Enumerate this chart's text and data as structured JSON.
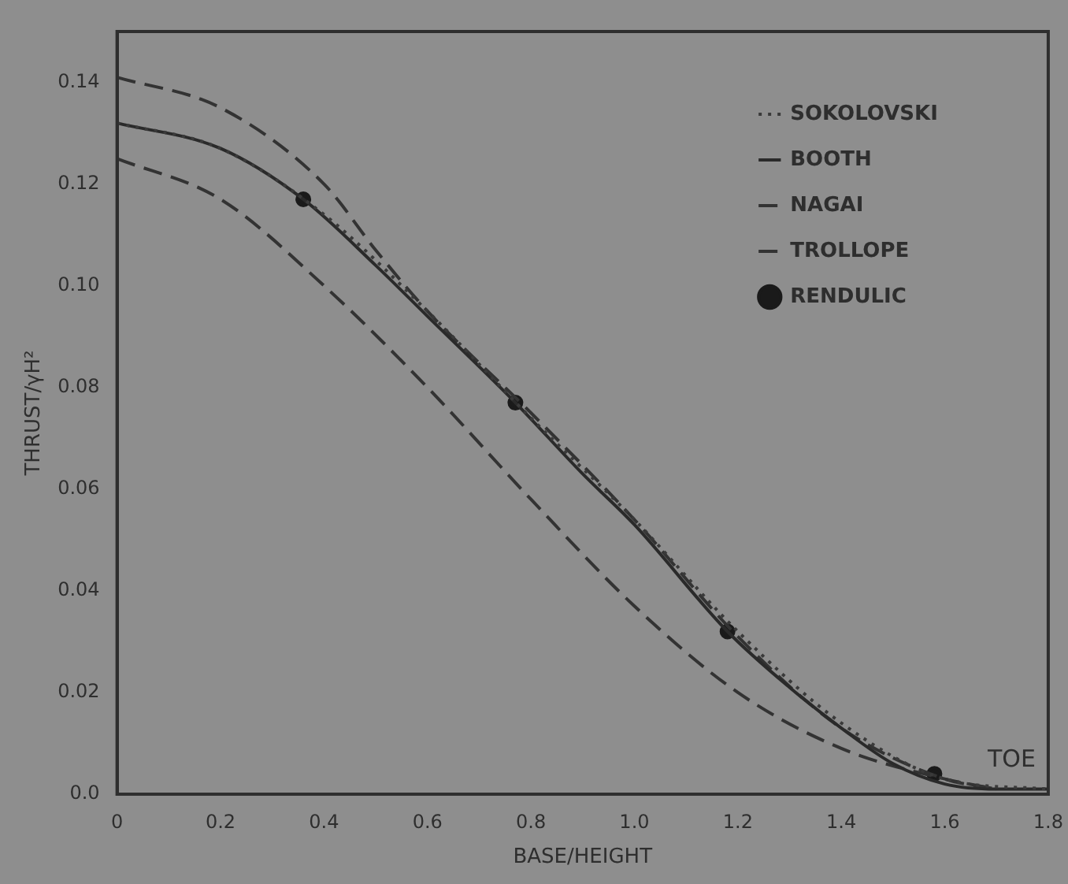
{
  "chart_data": {
    "type": "line",
    "xlabel": "BASE/HEIGHT",
    "ylabel": "THRUST/γH²",
    "xlim": [
      0,
      1.8
    ],
    "xticks": [
      0,
      0.2,
      0.4,
      0.6,
      0.8,
      {
        "value": 1,
        "label": "1.0"
      },
      1.2,
      1.4,
      1.6,
      1.8
    ],
    "ylim": [
      0,
      0.15
    ],
    "yticks": [
      {
        "value": 0,
        "label": "0.0"
      },
      0.02,
      0.04,
      0.06,
      0.08,
      {
        "value": 0.1,
        "label": "0.10"
      },
      0.12,
      0.14
    ],
    "grid": false,
    "legend": "top right",
    "marker": "none",
    "annotations": [
      "TOE"
    ],
    "series": [
      {
        "name": "SOKOLOVSKI",
        "color": "#3a3a3a",
        "line_style": "dotted",
        "x": [
          0,
          0.2,
          0.4,
          0.6,
          0.8,
          1.0,
          1.2,
          1.4,
          1.6,
          1.8
        ],
        "values": [
          0.132,
          0.127,
          0.114,
          0.095,
          0.074,
          0.054,
          0.032,
          0.014,
          0.003,
          0.001
        ]
      },
      {
        "name": "BOOTH",
        "color": "#2a2a2a",
        "line_style": "solid",
        "x": [
          0,
          0.2,
          0.36,
          0.5,
          0.6,
          0.77,
          0.9,
          1.0,
          1.18,
          1.3,
          1.4,
          1.5,
          1.6,
          1.7,
          1.8
        ],
        "values": [
          0.132,
          0.127,
          0.117,
          0.104,
          0.094,
          0.077,
          0.063,
          0.053,
          0.032,
          0.021,
          0.013,
          0.006,
          0.002,
          0.001,
          0.001
        ]
      },
      {
        "name": "NAGAI",
        "color": "#333333",
        "line_style": "dashed",
        "x": [
          0,
          0.2,
          0.4,
          0.5,
          0.6,
          0.8,
          1.0,
          1.2,
          1.4,
          1.6,
          1.7
        ],
        "values": [
          0.141,
          0.135,
          0.12,
          0.107,
          0.095,
          0.075,
          0.054,
          0.031,
          0.013,
          0.003,
          0.001
        ]
      },
      {
        "name": "TROLLOPE",
        "color": "#333333",
        "line_style": "dashed",
        "x": [
          0,
          0.2,
          0.4,
          0.6,
          0.8,
          1.0,
          1.2,
          1.4,
          1.6,
          1.7
        ],
        "values": [
          0.125,
          0.117,
          0.1,
          0.08,
          0.058,
          0.037,
          0.02,
          0.009,
          0.003,
          0.001
        ]
      },
      {
        "name": "RENDULIC",
        "type": "scatter",
        "marker": "circle",
        "color": "#1a1a1a",
        "x": [
          0.36,
          0.77,
          1.18,
          1.58
        ],
        "values": [
          0.117,
          0.077,
          0.032,
          0.004
        ]
      }
    ]
  }
}
